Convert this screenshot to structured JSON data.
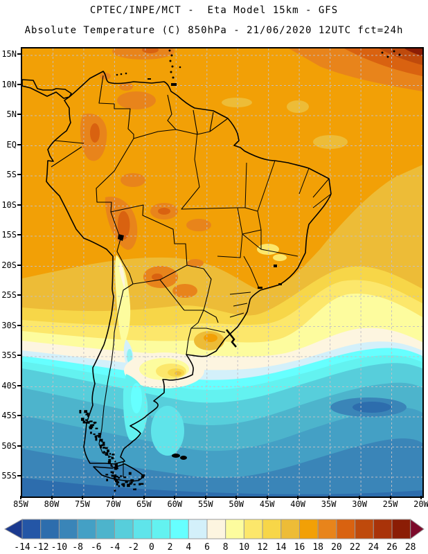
{
  "header": {
    "line1": "CPTEC/INPE/MCT -  Eta Model 15km - GFS",
    "line2": "Absolute Temperature (C) 850hPa - 21/06/2020 12UTC fct=24h"
  },
  "map": {
    "y_tick_labels": [
      "15N",
      "10N",
      "5N",
      "EQ",
      "5S",
      "10S",
      "15S",
      "20S",
      "25S",
      "30S",
      "35S",
      "40S",
      "45S",
      "50S",
      "55S"
    ],
    "x_tick_labels": [
      "85W",
      "80W",
      "75W",
      "70W",
      "65W",
      "60W",
      "55W",
      "50W",
      "45W",
      "40W",
      "35W",
      "30W",
      "25W",
      "20W"
    ]
  },
  "colorbar": {
    "tick_labels": [
      "-14",
      "-12",
      "-10",
      "-8",
      "-6",
      "-4",
      "-2",
      "0",
      "2",
      "4",
      "6",
      "8",
      "10",
      "12",
      "14",
      "16",
      "18",
      "20",
      "22",
      "24",
      "26",
      "28"
    ],
    "cell_colors": [
      "#2456A6",
      "#2D6DAD",
      "#3A85B8",
      "#44A0C5",
      "#4DB4CC",
      "#57CEDB",
      "#5FE4EA",
      "#63F2F0",
      "#66FFFF",
      "#D3F0FA",
      "#FDF5E0",
      "#FDFC9E",
      "#FCE76B",
      "#F7D648",
      "#EDBC37",
      "#F2A006",
      "#E8841B",
      "#D96210",
      "#BF4A0C",
      "#A93309",
      "#8B1D05"
    ],
    "arrow_left_color": "#1B3A8F",
    "arrow_right_color": "#7C0A2B",
    "cell_border_color": "#999999"
  },
  "colors": {
    "frame": "#000000",
    "coastline": "#000000",
    "gridline": "#C2C0C6",
    "background": "#FFFFFF"
  }
}
